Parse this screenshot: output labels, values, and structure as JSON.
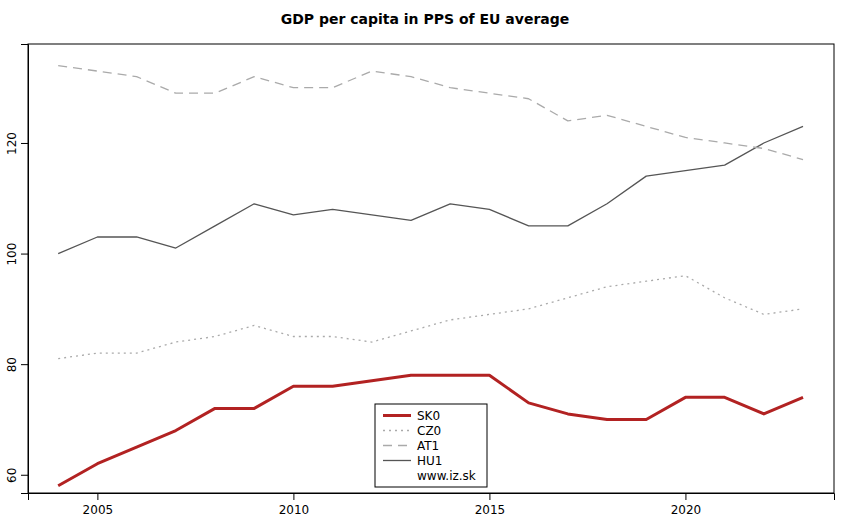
{
  "chart_data": {
    "type": "line",
    "title": "GDP per capita in PPS of EU average",
    "x": [
      2004,
      2005,
      2006,
      2007,
      2008,
      2009,
      2010,
      2011,
      2012,
      2013,
      2014,
      2015,
      2016,
      2017,
      2018,
      2019,
      2020,
      2021,
      2022,
      2023
    ],
    "series": [
      {
        "name": "SK0",
        "color": "#b22222",
        "line_style": "solid",
        "values": [
          58,
          62,
          65,
          68,
          72,
          72,
          76,
          76,
          77,
          78,
          78,
          78,
          73,
          71,
          70,
          70,
          74,
          74,
          71,
          74
        ]
      },
      {
        "name": "CZ0",
        "color": "#aaaaaa",
        "line_style": "dotted",
        "values": [
          81,
          82,
          82,
          84,
          85,
          87,
          85,
          85,
          84,
          86,
          88,
          89,
          90,
          92,
          94,
          95,
          96,
          92,
          89,
          90
        ]
      },
      {
        "name": "AT1",
        "color": "#aaaaaa",
        "line_style": "dashed",
        "values": [
          134,
          133,
          132,
          129,
          129,
          132,
          130,
          130,
          133,
          132,
          130,
          129,
          128,
          124,
          125,
          123,
          121,
          120,
          119,
          117
        ]
      },
      {
        "name": "HU1",
        "color": "#555555",
        "line_style": "solid",
        "values": [
          100,
          103,
          103,
          101,
          105,
          109,
          107,
          108,
          107,
          106,
          109,
          108,
          105,
          105,
          109,
          114,
          115,
          116,
          120,
          123
        ]
      }
    ],
    "source": "www.iz.sk",
    "xlim": [
      2003.23,
      2023.79
    ],
    "xticks": [
      2005,
      2010,
      2015,
      2020
    ],
    "ylim": [
      56.7,
      137.9
    ],
    "yticks": [
      60,
      80,
      100,
      120
    ],
    "grid": false,
    "legend": "bottom"
  }
}
